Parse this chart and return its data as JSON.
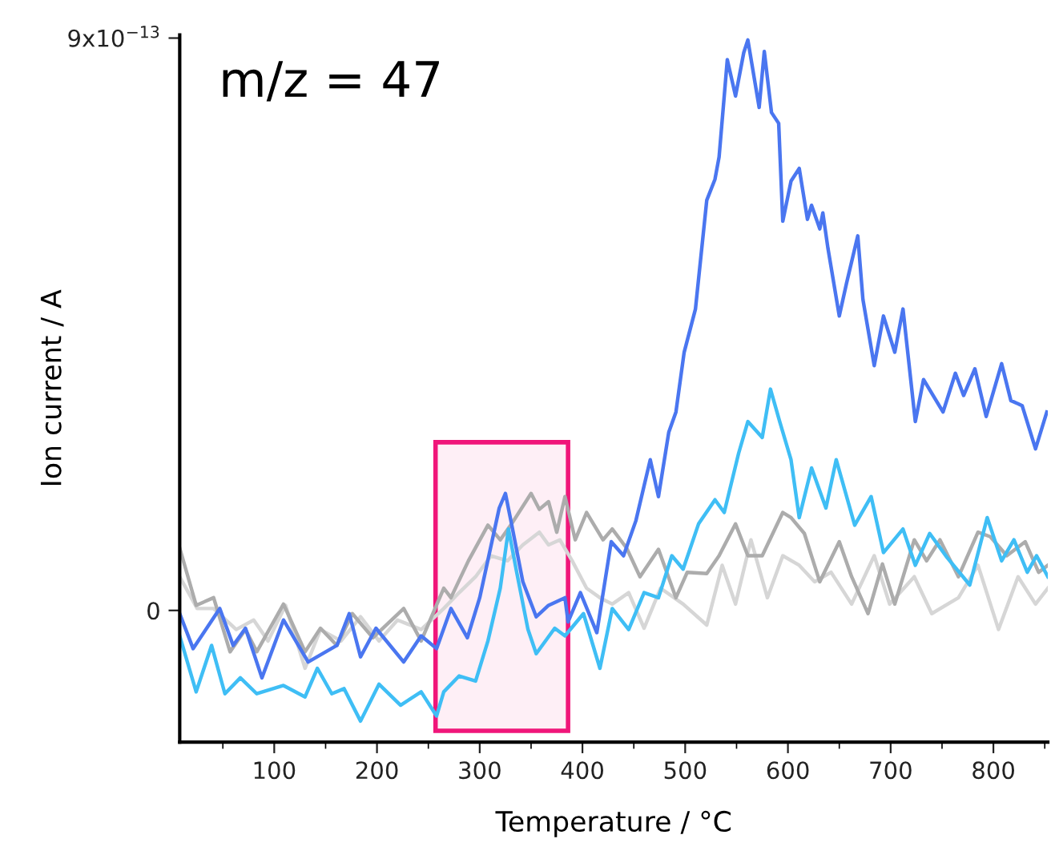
{
  "chart_data": {
    "type": "line",
    "xlabel": "Temperature / °C",
    "ylabel": "Ion current / A",
    "annotations": [
      "m/z = 47"
    ],
    "xlim": [
      8,
      853
    ],
    "xticks": [
      100,
      200,
      300,
      400,
      500,
      600,
      700,
      800
    ],
    "ylim": [
      -2.07e-13,
      9.05e-13
    ],
    "yticks": [
      0,
      {
        "value": 9e-13,
        "label": "9x10$^{−13}$"
      }
    ],
    "grid": false,
    "legend": false,
    "marker": "none",
    "line_style": "solid",
    "bands": [
      {
        "axis": "x",
        "from": 257,
        "to": 386,
        "color": "#f0167a"
      }
    ],
    "series": [
      {
        "color": "#d6d6d6",
        "x": [
          8,
          25,
          41,
          63,
          80,
          94,
          111,
          130,
          145,
          165,
          184,
          202,
          220,
          243,
          265,
          280,
          296,
          311,
          327,
          342,
          358,
          367,
          378,
          390,
          404,
          417,
          429,
          445,
          460,
          476,
          498,
          521,
          536,
          549,
          564,
          580,
          595,
          611,
          626,
          642,
          662,
          684,
          699,
          723,
          740,
          766,
          785,
          805,
          824,
          841,
          853
        ],
        "values": [
          5.3e-14,
          3e-15,
          3e-15,
          -3e-14,
          -1.5e-14,
          -4.8e-14,
          8e-15,
          -9.1e-14,
          -3e-14,
          -4.8e-14,
          -1e-14,
          -4.8e-14,
          -1.5e-14,
          -3e-14,
          3e-15,
          2.8e-14,
          5.3e-14,
          8.6e-14,
          7.8e-14,
          1.03e-13,
          1.23e-13,
          1.03e-13,
          1.11e-13,
          7.8e-14,
          3.5e-14,
          2e-14,
          1e-14,
          2.8e-14,
          -2.8e-14,
          3.5e-14,
          1e-14,
          -2.3e-14,
          7.1e-14,
          1e-14,
          1.11e-13,
          2e-14,
          8.6e-14,
          7.1e-14,
          4.5e-14,
          6e-14,
          1e-14,
          8.6e-14,
          1e-14,
          5.3e-14,
          -5e-15,
          2e-14,
          7.1e-14,
          -3e-14,
          5.3e-14,
          1e-14,
          3.5e-14
        ]
      },
      {
        "color": "#acacac",
        "x": [
          8,
          24,
          41,
          57,
          72,
          83,
          109,
          130,
          145,
          161,
          176,
          196,
          226,
          243,
          265,
          272,
          289,
          308,
          320,
          331,
          350,
          358,
          367,
          375,
          383,
          393,
          404,
          420,
          429,
          443,
          456,
          474,
          491,
          502,
          521,
          533,
          549,
          561,
          575,
          595,
          603,
          616,
          631,
          650,
          662,
          678,
          692,
          704,
          723,
          735,
          748,
          766,
          785,
          797,
          813,
          831,
          844,
          853
        ],
        "values": [
          9.8e-14,
          8e-15,
          2e-14,
          -6.5e-14,
          -3e-14,
          -6.5e-14,
          1e-14,
          -6.5e-14,
          -2.8e-14,
          -5.5e-14,
          -5e-15,
          -4.3e-14,
          3e-15,
          -4.8e-14,
          3.5e-14,
          2e-14,
          7.8e-14,
          1.34e-13,
          1.11e-13,
          1.36e-13,
          1.84e-13,
          1.59e-13,
          1.71e-13,
          1.23e-13,
          1.79e-13,
          1.11e-13,
          1.54e-13,
          1.11e-13,
          1.28e-13,
          9.8e-14,
          5.3e-14,
          9.6e-14,
          2e-14,
          6e-14,
          5.8e-14,
          8.6e-14,
          1.36e-13,
          8.6e-14,
          8.6e-14,
          1.54e-13,
          1.46e-13,
          1.21e-13,
          4.5e-14,
          1.08e-13,
          5.3e-14,
          -5e-15,
          7.3e-14,
          1e-14,
          1.11e-13,
          7.8e-14,
          1.11e-13,
          5.3e-14,
          1.23e-13,
          1.16e-13,
          8.6e-14,
          1.08e-13,
          6e-14,
          7.1e-14
        ]
      },
      {
        "color": "#3fbef5",
        "x": [
          8,
          24,
          39,
          52,
          67,
          83,
          109,
          130,
          142,
          156,
          168,
          184,
          202,
          223,
          243,
          258,
          265,
          280,
          296,
          308,
          320,
          328,
          336,
          347,
          355,
          373,
          383,
          401,
          417,
          429,
          445,
          460,
          474,
          487,
          498,
          513,
          529,
          538,
          552,
          561,
          575,
          583,
          592,
          603,
          611,
          623,
          637,
          647,
          665,
          681,
          693,
          712,
          724,
          738,
          755,
          777,
          794,
          808,
          820,
          833,
          842,
          853
        ],
        "values": [
          -4e-14,
          -1.28e-13,
          -5.5e-14,
          -1.31e-13,
          -1.06e-13,
          -1.31e-13,
          -1.18e-13,
          -1.36e-13,
          -9.1e-14,
          -1.31e-13,
          -1.23e-13,
          -1.74e-13,
          -1.16e-13,
          -1.49e-13,
          -1.28e-13,
          -1.66e-13,
          -1.28e-13,
          -1.03e-13,
          -1.11e-13,
          -4.8e-14,
          3.5e-14,
          1.28e-13,
          6e-14,
          -3e-14,
          -6.8e-14,
          -2.8e-14,
          -4e-14,
          -5e-15,
          -9.1e-14,
          3e-15,
          -3e-14,
          2.8e-14,
          2e-14,
          8.6e-14,
          6.5e-14,
          1.36e-13,
          1.74e-13,
          1.54e-13,
          2.47e-13,
          2.97e-13,
          2.72e-13,
          3.48e-13,
          2.97e-13,
          2.37e-13,
          1.46e-13,
          2.24e-13,
          1.61e-13,
          2.37e-13,
          1.34e-13,
          1.79e-13,
          9.1e-14,
          1.28e-13,
          7.1e-14,
          1.21e-13,
          8.3e-14,
          4e-14,
          1.46e-13,
          7.8e-14,
          1.11e-13,
          6e-14,
          8.6e-14,
          5.3e-14
        ]
      },
      {
        "color": "#4a76f0",
        "x": [
          8,
          21,
          47,
          60,
          72,
          88,
          109,
          133,
          161,
          173,
          184,
          199,
          226,
          243,
          258,
          272,
          288,
          300,
          319,
          325,
          331,
          342,
          355,
          367,
          383,
          386,
          398,
          414,
          428,
          440,
          452,
          460,
          466,
          474,
          484,
          491,
          499,
          510,
          521,
          529,
          533,
          541,
          549,
          557,
          561,
          572,
          577,
          584,
          591,
          595,
          603,
          611,
          619,
          623,
          631,
          634,
          639,
          650,
          657,
          668,
          673,
          684,
          693,
          704,
          712,
          724,
          732,
          751,
          763,
          771,
          782,
          793,
          808,
          817,
          828,
          841,
          852
        ],
        "values": [
          -5e-15,
          -6e-14,
          3e-15,
          -5.5e-14,
          -2.8e-14,
          -1.06e-13,
          -1.5e-14,
          -8.1e-14,
          -5.5e-14,
          -5e-15,
          -7.3e-14,
          -2.8e-14,
          -8.1e-14,
          -4e-14,
          -6e-14,
          3e-15,
          -4.3e-14,
          2e-14,
          1.61e-13,
          1.84e-13,
          1.36e-13,
          4.5e-14,
          -1e-14,
          8e-15,
          2e-14,
          -1.8e-14,
          2.8e-14,
          -3.5e-14,
          1.08e-13,
          8.6e-14,
          1.41e-13,
          1.96e-13,
          2.37e-13,
          1.79e-13,
          2.8e-13,
          3.12e-13,
          4.06e-13,
          4.74e-13,
          6.45e-13,
          6.78e-13,
          7.13e-13,
          8.66e-13,
          8.09e-13,
          8.77e-13,
          8.97e-13,
          7.91e-13,
          8.79e-13,
          7.83e-13,
          7.66e-13,
          6.12e-13,
          6.75e-13,
          6.95e-13,
          6.15e-13,
          6.37e-13,
          6e-13,
          6.25e-13,
          5.69e-13,
          4.63e-13,
          5.14e-13,
          5.89e-13,
          4.89e-13,
          3.85e-13,
          4.63e-13,
          4.06e-13,
          4.74e-13,
          2.97e-13,
          3.63e-13,
          3.12e-13,
          3.73e-13,
          3.38e-13,
          3.8e-13,
          3.05e-13,
          3.88e-13,
          3.3e-13,
          3.22e-13,
          2.54e-13,
          3.12e-13
        ]
      }
    ]
  }
}
